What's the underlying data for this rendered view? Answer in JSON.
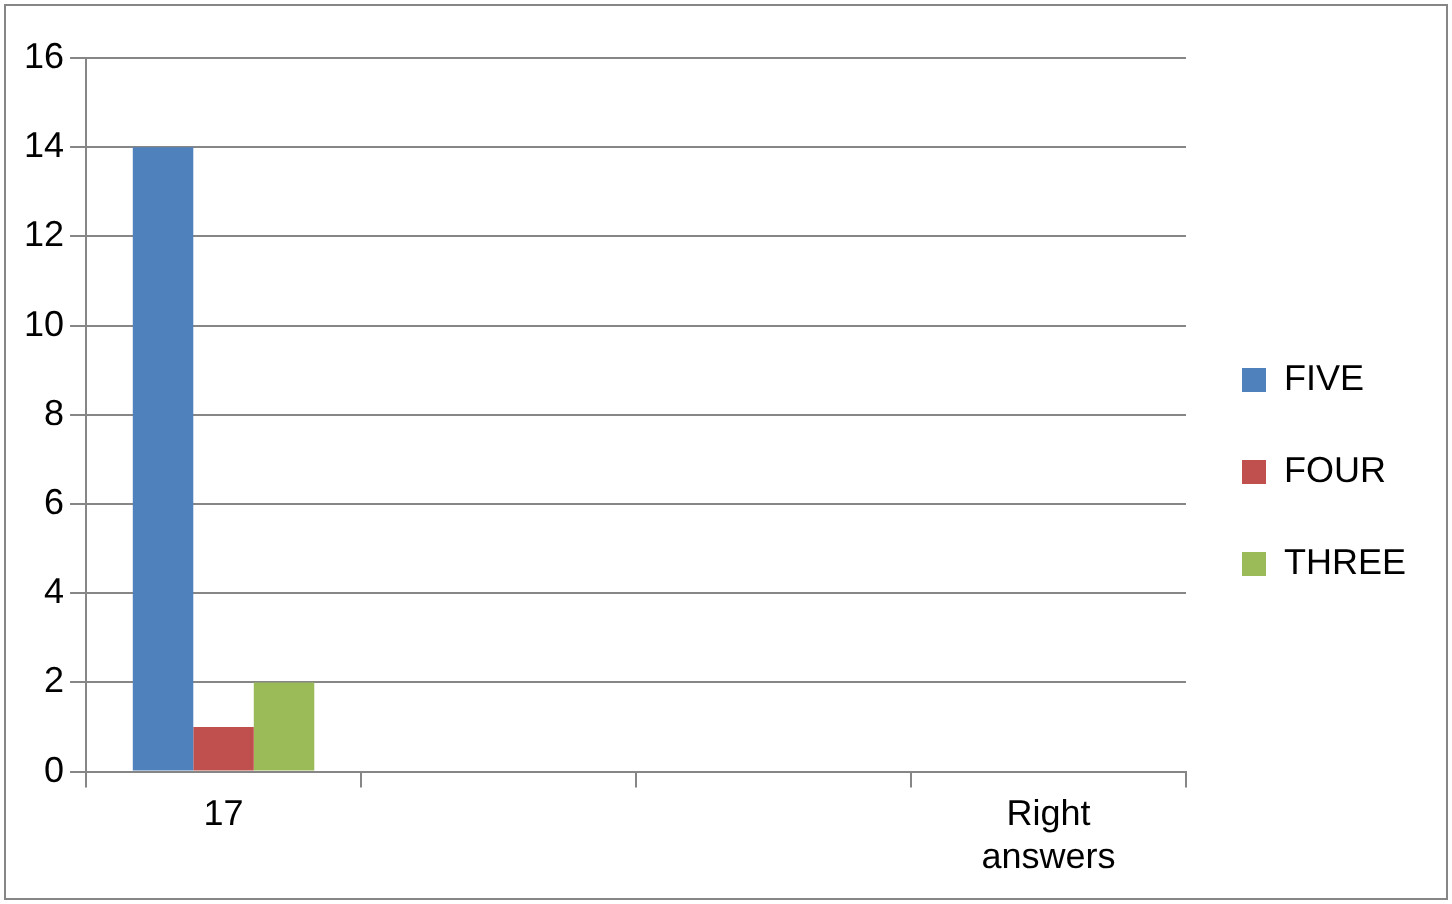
{
  "chart_data": {
    "type": "bar",
    "categories": [
      "17",
      null,
      null,
      "Right answers"
    ],
    "series": [
      {
        "name": "FIVE",
        "color": "#4f81bd",
        "values": [
          14,
          null,
          null,
          null
        ]
      },
      {
        "name": "FOUR",
        "color": "#c0504d",
        "values": [
          1,
          null,
          null,
          null
        ]
      },
      {
        "name": "THREE",
        "color": "#9bbb59",
        "values": [
          2,
          null,
          null,
          null
        ]
      }
    ],
    "ylim": [
      0,
      16
    ],
    "yticks": [
      0,
      2,
      4,
      6,
      8,
      10,
      12,
      14,
      16
    ],
    "grid": "y",
    "legend": "right"
  }
}
